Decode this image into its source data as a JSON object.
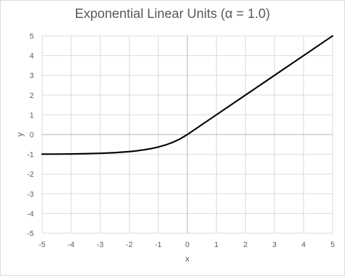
{
  "chart_data": {
    "type": "line",
    "title": "Exponential Linear Units (α = 1.0)",
    "xlabel": "x",
    "ylabel": "y",
    "xlim": [
      -5,
      5
    ],
    "ylim": [
      -5,
      5
    ],
    "x_ticks": [
      -5,
      -4,
      -3,
      -2,
      -1,
      0,
      1,
      2,
      3,
      4,
      5
    ],
    "y_ticks": [
      -5,
      -4,
      -3,
      -2,
      -1,
      0,
      1,
      2,
      3,
      4,
      5
    ],
    "grid": true,
    "legend": "none",
    "series": [
      {
        "color": "#000000",
        "x": [
          -5,
          -4.5,
          -4,
          -3.5,
          -3,
          -2.5,
          -2,
          -1.75,
          -1.5,
          -1.25,
          -1,
          -0.75,
          -0.5,
          -0.25,
          0,
          1,
          2,
          3,
          4,
          5
        ],
        "y": [
          -0.993,
          -0.989,
          -0.982,
          -0.97,
          -0.95,
          -0.918,
          -0.865,
          -0.826,
          -0.777,
          -0.713,
          -0.632,
          -0.528,
          -0.393,
          -0.221,
          0,
          1,
          2,
          3,
          4,
          5
        ]
      }
    ],
    "colors": {
      "grid": "#d9d9d9",
      "zero_axis": "#bfbfbf",
      "tick_text": "#595959"
    }
  }
}
